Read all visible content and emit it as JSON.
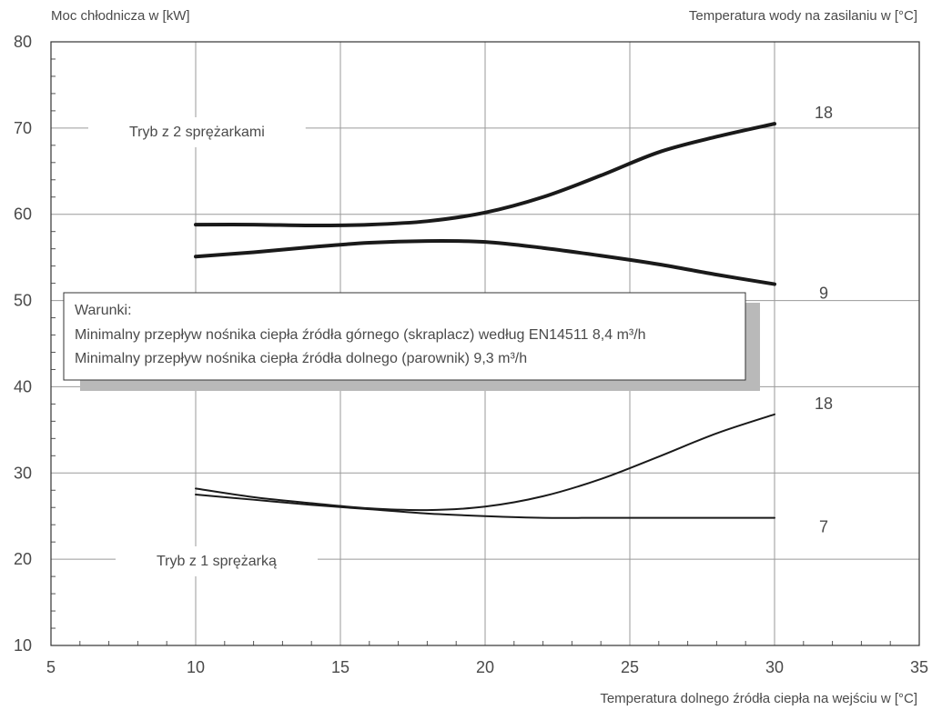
{
  "chart_data": {
    "type": "line",
    "ylabel": "Moc chłodnicza w [kW]",
    "xlabel": "Temperatura dolnego źródła ciepła na wejściu w [°C]",
    "legend_title": "Temperatura wody na zasilaniu w [°C]",
    "xlim": [
      5,
      35
    ],
    "ylim": [
      10,
      80
    ],
    "x_ticks": [
      "5",
      "10",
      "15",
      "20",
      "25",
      "30",
      "35"
    ],
    "y_ticks": [
      "10",
      "20",
      "30",
      "40",
      "50",
      "60",
      "70",
      "80"
    ],
    "grid": true,
    "annotations": {
      "two_compressors": "Tryb z 2 sprężarkami",
      "one_compressor": "Tryb z 1 sprężarką"
    },
    "conditions": {
      "title": "Warunki:",
      "line1": "Minimalny przepływ nośnika ciepła źródła górnego (skraplacz) według EN14511 8,4 m³/h",
      "line2": "Minimalny przepływ nośnika ciepła źródła dolnego (parownik) 9,3 m³/h"
    },
    "series": [
      {
        "name": "18",
        "group": "Tryb z 2 sprężarkami",
        "weight": "bold",
        "x": [
          10,
          12,
          14,
          16,
          18,
          20,
          22,
          24,
          26,
          28,
          30
        ],
        "y": [
          58.8,
          58.8,
          58.7,
          58.8,
          59.2,
          60.2,
          62.0,
          64.5,
          67.2,
          69.0,
          70.5
        ]
      },
      {
        "name": "9",
        "group": "Tryb z 2 sprężarkami",
        "weight": "bold",
        "x": [
          10,
          12,
          14,
          16,
          18,
          20,
          22,
          24,
          26,
          28,
          30
        ],
        "y": [
          55.1,
          55.6,
          56.2,
          56.7,
          56.9,
          56.8,
          56.1,
          55.2,
          54.2,
          53.0,
          51.9
        ]
      },
      {
        "name": "18",
        "group": "Tryb z 1 sprężarką",
        "weight": "normal",
        "x": [
          10,
          12,
          14,
          16,
          18,
          20,
          22,
          24,
          26,
          28,
          30
        ],
        "y": [
          28.2,
          27.2,
          26.5,
          25.9,
          25.7,
          26.1,
          27.3,
          29.3,
          31.9,
          34.6,
          36.8
        ]
      },
      {
        "name": "7",
        "group": "Tryb z 1 sprężarką",
        "weight": "normal",
        "x": [
          10,
          12,
          14,
          16,
          18,
          20,
          22,
          24,
          26,
          28,
          30
        ],
        "y": [
          27.5,
          26.9,
          26.3,
          25.8,
          25.3,
          25.0,
          24.8,
          24.8,
          24.8,
          24.8,
          24.8
        ]
      }
    ]
  }
}
